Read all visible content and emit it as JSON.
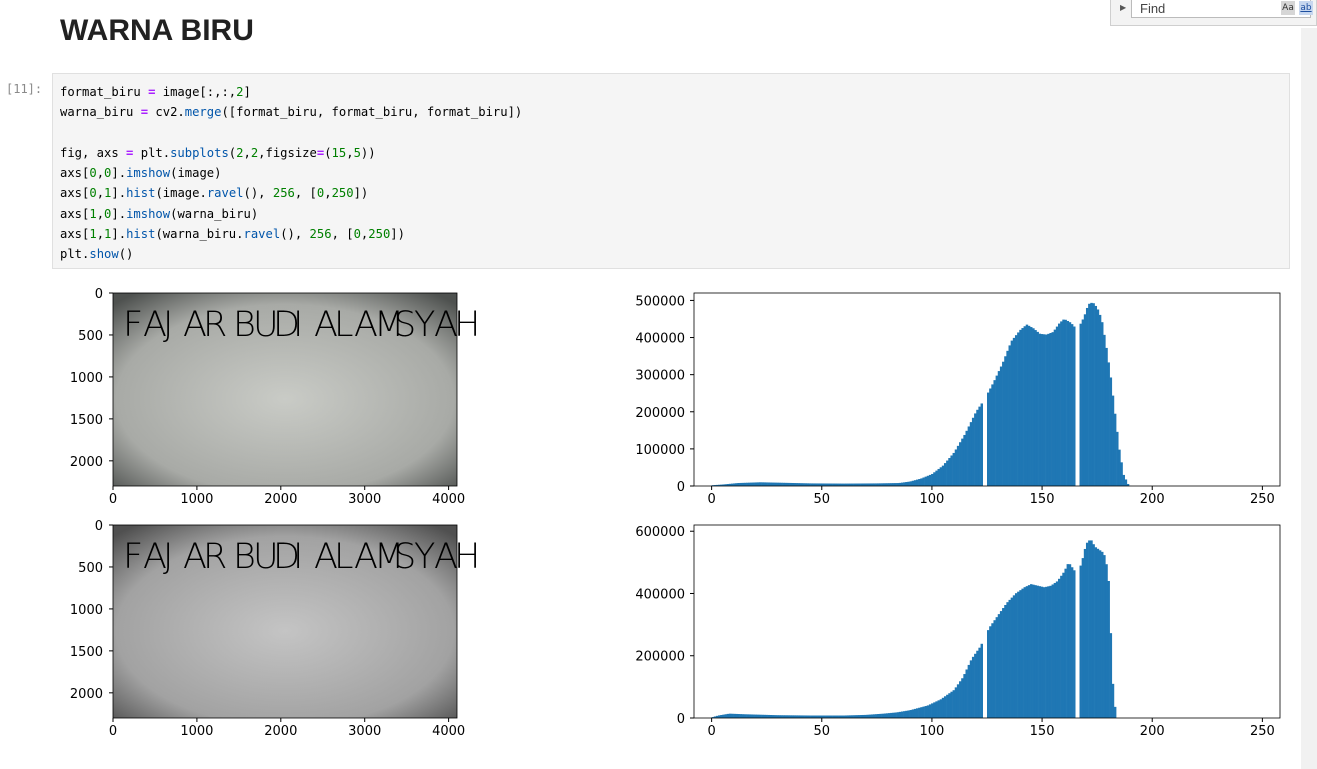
{
  "heading": "WARNA BIRU",
  "find_bar": {
    "placeholder": "Find",
    "opt_case": "Aa",
    "opt_word": "ab"
  },
  "cell": {
    "prompt": "[11]:",
    "code": [
      [
        [
          "t",
          "format_biru "
        ],
        [
          "o",
          "="
        ],
        [
          "t",
          " image[:,:,"
        ],
        [
          "num",
          "2"
        ],
        [
          "t",
          "]"
        ]
      ],
      [
        [
          "t",
          "warna_biru "
        ],
        [
          "o",
          "="
        ],
        [
          "t",
          " cv2."
        ],
        [
          "n",
          "merge"
        ],
        [
          "t",
          "([format_biru, format_biru, format_biru])"
        ]
      ],
      [],
      [
        [
          "t",
          "fig, axs "
        ],
        [
          "o",
          "="
        ],
        [
          "t",
          " plt."
        ],
        [
          "n",
          "subplots"
        ],
        [
          "t",
          "("
        ],
        [
          "num",
          "2"
        ],
        [
          "t",
          ","
        ],
        [
          "num",
          "2"
        ],
        [
          "t",
          ",figsize"
        ],
        [
          "o",
          "="
        ],
        [
          "t",
          "("
        ],
        [
          "num",
          "15"
        ],
        [
          "t",
          ","
        ],
        [
          "num",
          "5"
        ],
        [
          "t",
          "))"
        ]
      ],
      [
        [
          "t",
          "axs["
        ],
        [
          "num",
          "0"
        ],
        [
          "t",
          ","
        ],
        [
          "num",
          "0"
        ],
        [
          "t",
          "]."
        ],
        [
          "n",
          "imshow"
        ],
        [
          "t",
          "(image)"
        ]
      ],
      [
        [
          "t",
          "axs["
        ],
        [
          "num",
          "0"
        ],
        [
          "t",
          ","
        ],
        [
          "num",
          "1"
        ],
        [
          "t",
          "]."
        ],
        [
          "n",
          "hist"
        ],
        [
          "t",
          "(image."
        ],
        [
          "n",
          "ravel"
        ],
        [
          "t",
          "(), "
        ],
        [
          "num",
          "256"
        ],
        [
          "t",
          ", ["
        ],
        [
          "num",
          "0"
        ],
        [
          "t",
          ","
        ],
        [
          "num",
          "250"
        ],
        [
          "t",
          "])"
        ]
      ],
      [
        [
          "t",
          "axs["
        ],
        [
          "num",
          "1"
        ],
        [
          "t",
          ","
        ],
        [
          "num",
          "0"
        ],
        [
          "t",
          "]."
        ],
        [
          "n",
          "imshow"
        ],
        [
          "t",
          "(warna_biru)"
        ]
      ],
      [
        [
          "t",
          "axs["
        ],
        [
          "num",
          "1"
        ],
        [
          "t",
          ","
        ],
        [
          "num",
          "1"
        ],
        [
          "t",
          "]."
        ],
        [
          "n",
          "hist"
        ],
        [
          "t",
          "(warna_biru."
        ],
        [
          "n",
          "ravel"
        ],
        [
          "t",
          "(), "
        ],
        [
          "num",
          "256"
        ],
        [
          "t",
          ", ["
        ],
        [
          "num",
          "0"
        ],
        [
          "t",
          ","
        ],
        [
          "num",
          "250"
        ],
        [
          "t",
          "])"
        ]
      ],
      [
        [
          "t",
          "plt."
        ],
        [
          "n",
          "show"
        ],
        [
          "t",
          "()"
        ]
      ]
    ]
  },
  "colors": {
    "bar": "#1f77b4",
    "heading": "#212121",
    "code_bg": "#f5f5f5",
    "letter_red": "#c8383c",
    "letter_blue": "#3a3f9c",
    "letter_green": "#2f8a5a",
    "letter_dark": "#222222"
  },
  "image_label": "FAJAR BUDI ALAMSYAH",
  "chart_data": [
    {
      "type": "image",
      "subplot": "axs[0,0]",
      "text": "FAJAR BUDI ALAMSYAH",
      "xticks": [
        "0",
        "1000",
        "2000",
        "3000",
        "4000"
      ],
      "yticks": [
        "0",
        "500",
        "1000",
        "1500",
        "2000"
      ],
      "xlim": [
        0,
        4100
      ],
      "ylim": [
        2300,
        0
      ]
    },
    {
      "type": "bar",
      "subplot": "axs[0,1]",
      "xticks": [
        "0",
        "50",
        "100",
        "150",
        "200",
        "250"
      ],
      "yticks": [
        "0",
        "100000",
        "200000",
        "300000",
        "400000",
        "500000"
      ],
      "xlim": [
        -8,
        258
      ],
      "ylim": [
        0,
        520000
      ],
      "profile": [
        [
          0,
          2000
        ],
        [
          5,
          4000
        ],
        [
          12,
          8000
        ],
        [
          22,
          10000
        ],
        [
          30,
          9000
        ],
        [
          45,
          7000
        ],
        [
          60,
          6500
        ],
        [
          75,
          7000
        ],
        [
          85,
          8000
        ],
        [
          90,
          12000
        ],
        [
          95,
          20000
        ],
        [
          100,
          32000
        ],
        [
          105,
          55000
        ],
        [
          110,
          90000
        ],
        [
          115,
          140000
        ],
        [
          120,
          200000
        ],
        [
          124,
          235000
        ],
        [
          128,
          280000
        ],
        [
          132,
          330000
        ],
        [
          136,
          390000
        ],
        [
          140,
          420000
        ],
        [
          143,
          435000
        ],
        [
          146,
          425000
        ],
        [
          149,
          410000
        ],
        [
          152,
          408000
        ],
        [
          155,
          415000
        ],
        [
          158,
          440000
        ],
        [
          160,
          450000
        ],
        [
          163,
          440000
        ],
        [
          166,
          420000
        ],
        [
          169,
          455000
        ],
        [
          171,
          490000
        ],
        [
          173,
          495000
        ],
        [
          175,
          480000
        ],
        [
          177,
          450000
        ],
        [
          179,
          380000
        ],
        [
          181,
          300000
        ],
        [
          183,
          200000
        ],
        [
          185,
          100000
        ],
        [
          187,
          30000
        ],
        [
          189,
          5000
        ],
        [
          190,
          0
        ]
      ],
      "gaps": [
        124,
        166
      ]
    },
    {
      "type": "image",
      "subplot": "axs[1,0]",
      "text": "FAJAR BUDI ALAMSYAH",
      "xticks": [
        "0",
        "1000",
        "2000",
        "3000",
        "4000"
      ],
      "yticks": [
        "0",
        "500",
        "1000",
        "1500",
        "2000"
      ],
      "xlim": [
        0,
        4100
      ],
      "ylim": [
        2300,
        0
      ]
    },
    {
      "type": "bar",
      "subplot": "axs[1,1]",
      "xticks": [
        "0",
        "50",
        "100",
        "150",
        "200",
        "250"
      ],
      "yticks": [
        "0",
        "200000",
        "400000",
        "600000"
      ],
      "xlim": [
        -8,
        258
      ],
      "ylim": [
        0,
        620000
      ],
      "profile": [
        [
          0,
          2000
        ],
        [
          3,
          8000
        ],
        [
          8,
          14000
        ],
        [
          15,
          12000
        ],
        [
          30,
          9000
        ],
        [
          45,
          8000
        ],
        [
          60,
          8000
        ],
        [
          70,
          10000
        ],
        [
          78,
          14000
        ],
        [
          84,
          18000
        ],
        [
          90,
          25000
        ],
        [
          98,
          40000
        ],
        [
          104,
          60000
        ],
        [
          110,
          90000
        ],
        [
          114,
          130000
        ],
        [
          118,
          190000
        ],
        [
          122,
          230000
        ],
        [
          126,
          290000
        ],
        [
          130,
          330000
        ],
        [
          134,
          370000
        ],
        [
          138,
          400000
        ],
        [
          142,
          420000
        ],
        [
          145,
          430000
        ],
        [
          148,
          425000
        ],
        [
          151,
          420000
        ],
        [
          154,
          425000
        ],
        [
          157,
          440000
        ],
        [
          160,
          470000
        ],
        [
          162,
          500000
        ],
        [
          164,
          480000
        ],
        [
          166,
          460000
        ],
        [
          168,
          500000
        ],
        [
          170,
          560000
        ],
        [
          172,
          575000
        ],
        [
          174,
          550000
        ],
        [
          176,
          540000
        ],
        [
          178,
          530000
        ],
        [
          180,
          470000
        ],
        [
          181,
          300000
        ],
        [
          182,
          120000
        ],
        [
          183,
          40000
        ],
        [
          184,
          0
        ]
      ],
      "gaps": [
        124,
        166
      ]
    }
  ]
}
